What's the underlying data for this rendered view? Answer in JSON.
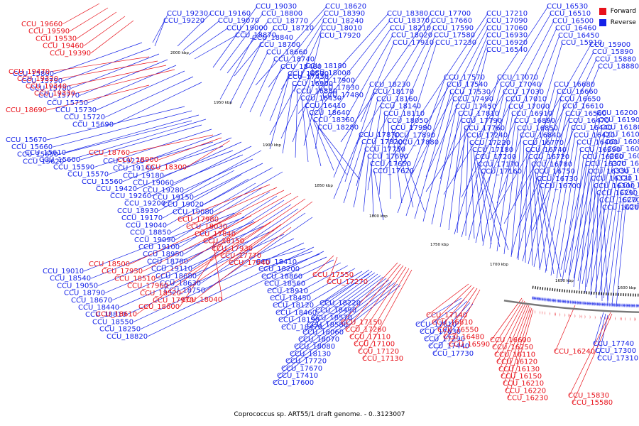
{
  "legend": {
    "forward_label": "Forward",
    "reverse_label": "Reverse",
    "forward_color": "#e8111a",
    "reverse_color": "#1321e8"
  },
  "caption": "Coprococcus sp. ART55/1 draft genome. - 0..3123007",
  "ticks": [
    "2000 kbp",
    "1950 kbp",
    "1900 kbp",
    "1850 kbp",
    "1800 kbp",
    "1750 kbp",
    "1700 kbp",
    "1650 kbp",
    "1600 kbp"
  ],
  "labels_reverse": [
    "CCU_19230",
    "CCU_19220",
    "CCU_19160",
    "CCU_19070",
    "CCU_19000",
    "CCU_18870",
    "CCU_19030",
    "CCU_18800",
    "CCU_18770",
    "CCU_18710",
    "CCU_18620",
    "CCU_18390",
    "CCU_18240",
    "CCU_18010",
    "CCU_17920",
    "CCU_18380",
    "CCU_18370",
    "CCU_18210",
    "CCU_18020",
    "CCU_17910",
    "CCU_17700",
    "CCU_17660",
    "CCU_17590",
    "CCU_17580",
    "CCU_17230",
    "CCU_17210",
    "CCU_17090",
    "CCU_17060",
    "CCU_16930",
    "CCU_16920",
    "CCU_16540",
    "CCU_16530",
    "CCU_16510",
    "CCU_16500",
    "CCU_16460",
    "CCU_16450",
    "CCU_15910",
    "CCU_15900",
    "CCU_15890",
    "CCU_15880",
    "CCU_18880",
    "CCU_18840",
    "CCU_18700",
    "CCU_18660",
    "CCU_18740",
    "CCU_18480",
    "CCU_18530",
    "CCU_18180",
    "CCU_18000",
    "CCU_17900",
    "CCU_17830",
    "CCU_17480",
    "CCU_17430",
    "CCU_16900",
    "CCU_16880",
    "CCU_16430",
    "CCU_16410",
    "CCU_18640",
    "CCU_18360",
    "CCU_18280",
    "CCU_18230",
    "CCU_18170",
    "CCU_18160",
    "CCU_18140",
    "CCU_18110",
    "CCU_18050",
    "CCU_17990",
    "CCU_17890",
    "CCU_17880",
    "CCU_17870",
    "CCU_17820",
    "CCU_17750",
    "CCU_17690",
    "CCU_17650",
    "CCU_17620",
    "CCU_17570",
    "CCU_17540",
    "CCU_17530",
    "CCU_17490",
    "CCU_17450",
    "CCU_17810",
    "CCU_17790",
    "CCU_17760",
    "CCU_17240",
    "CCU_17220",
    "CCU_17180",
    "CCU_17200",
    "CCU_17170",
    "CCU_17160",
    "CCU_17070",
    "CCU_17040",
    "CCU_17030",
    "CCU_17010",
    "CCU_17000",
    "CCU_16910",
    "CCU_16890",
    "CCU_16850",
    "CCU_16840",
    "CCU_16770",
    "CCU_16740",
    "CCU_16720",
    "CCU_16780",
    "CCU_16750",
    "CCU_16730",
    "CCU_16700",
    "CCU_16680",
    "CCU_16660",
    "CCU_16650",
    "CCU_16610",
    "CCU_16560",
    "CCU_16470",
    "CCU_16440",
    "CCU_16420",
    "CCU_16400",
    "CCU_16390",
    "CCU_16380",
    "CCU_16370",
    "CCU_16330",
    "CCU_16320",
    "CCU_16300",
    "CCU_16290",
    "CCU_16270",
    "CCU_16260",
    "CCU_16200",
    "CCU_16190",
    "CCU_16180",
    "CCU_16100",
    "CCU_16080",
    "CCU_16070",
    "CCU_16060",
    "CCU_16010",
    "CCU_16000",
    "CCU_15990",
    "CCU_15950",
    "CCU_15940",
    "CCU_15850",
    "CCU_15840",
    "CCU_15800",
    "CCU_15790",
    "CCU_15780",
    "CCU_15770",
    "CCU_15750",
    "CCU_15730",
    "CCU_15720",
    "CCU_15690",
    "CCU_15670",
    "CCU_15660",
    "CCU_15650",
    "CCU_15620",
    "CCU_15610",
    "CCU_15600",
    "CCU_15590",
    "CCU_15570",
    "CCU_15560",
    "CCU_19420",
    "CCU_19260",
    "CCU_19200",
    "CCU_19270",
    "CCU_19140",
    "CCU_19180",
    "CCU_19060",
    "CCU_19280",
    "CCU_19150",
    "CCU_19020",
    "CCU_19080",
    "CCU_18930",
    "CCU_19170",
    "CCU_19040",
    "CCU_18850",
    "CCU_19090",
    "CCU_19100",
    "CCU_18950",
    "CCU_18780",
    "CCU_19110",
    "CCU_18680",
    "CCU_18630",
    "CCU_18750",
    "CCU_19010",
    "CCU_18540",
    "CCU_19050",
    "CCU_18790",
    "CCU_18670",
    "CCU_18440",
    "CCU_18810",
    "CCU_18550",
    "CCU_18250",
    "CCU_18820",
    "CCU_18410",
    "CCU_18200",
    "CCU_18860",
    "CCU_18560",
    "CCU_18910",
    "CCU_18450",
    "CCU_18120",
    "CCU_18460",
    "CCU_18190",
    "CCU_18470",
    "CCU_18220",
    "CCU_18490",
    "CCU_18570",
    "CCU_18580",
    "CCU_18060",
    "CCU_18070",
    "CCU_18080",
    "CCU_18130",
    "CCU_17720",
    "CCU_17670",
    "CCU_17410",
    "CCU_17600",
    "CCU_17610",
    "CCU_17630",
    "CCU_17290",
    "CCU_17440",
    "CCU_17730",
    "CCU_17740",
    "CCU_17300",
    "CCU_17310",
    "CCU_17320",
    "CCU_17380",
    "CCU_17250",
    "CCU_17330",
    "CCU_17340",
    "CCU_17350",
    "CCU_17370",
    "CCU_16760",
    "CCU_16800",
    "CCU_16630",
    "CCU_16640",
    "CCU_16670",
    "CCU_15530",
    "CCU_15540",
    "CCU_15550"
  ],
  "labels_forward": [
    "CCU_19660",
    "CCU_19590",
    "CCU_19530",
    "CCU_19460",
    "CCU_19390",
    "CCU_19470",
    "CCU_19320",
    "CCU_19340",
    "CCU_19330",
    "CCU_18690",
    "CCU_18760",
    "CCU_18900",
    "CCU_18300",
    "CCU_17980",
    "CCU_18030",
    "CCU_17840",
    "CCU_18150",
    "CCU_17930",
    "CCU_17770",
    "CCU_17940",
    "CCU_18500",
    "CCU_17950",
    "CCU_18510",
    "CCU_17960",
    "CCU_18520",
    "CCU_17970",
    "CCU_18040",
    "CCU_18600",
    "CCU_18610",
    "CCU_17550",
    "CCU_17270",
    "CCU_17150",
    "CCU_17260",
    "CCU_17110",
    "CCU_17100",
    "CCU_17120",
    "CCU_17130",
    "CCU_17140",
    "CCU_16810",
    "CCU_16550",
    "CCU_16480",
    "CCU_16590",
    "CCU_16600",
    "CCU_16250",
    "CCU_16110",
    "CCU_16120",
    "CCU_16130",
    "CCU_16150",
    "CCU_16210",
    "CCU_16220",
    "CCU_16230",
    "CCU_16240",
    "CCU_15830",
    "CCU_15580",
    "CCU_15680"
  ]
}
